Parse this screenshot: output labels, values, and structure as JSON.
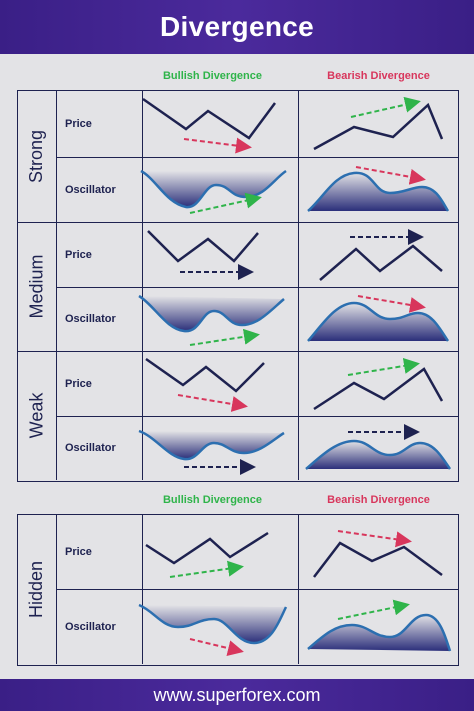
{
  "header": {
    "title": "Divergence"
  },
  "columns": {
    "bullish": "Bullish Divergence",
    "bearish": "Bearish Divergence"
  },
  "rows": {
    "price": "Price",
    "oscillator": "Oscillator"
  },
  "categories": [
    "Strong",
    "Medium",
    "Weak",
    "Hidden"
  ],
  "colors": {
    "header": "#3a1f86",
    "line": "#1e2250",
    "bullish": "#2fb44a",
    "bearish": "#d8365c",
    "neutral_arrow": "#1e2250",
    "fill": "#2b2f7a"
  },
  "footer": {
    "url": "www.superforex.com"
  }
}
